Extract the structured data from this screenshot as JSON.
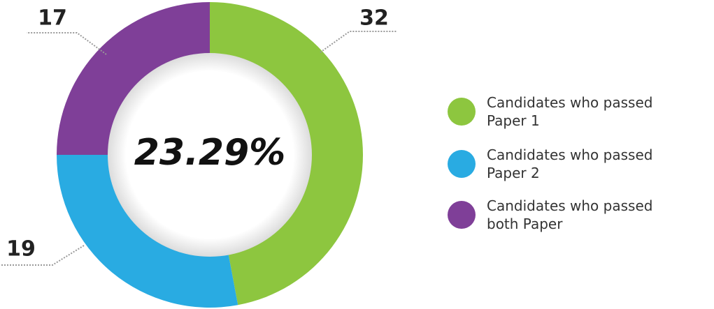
{
  "chart_data": {
    "type": "pie",
    "donut": true,
    "categories": [
      "Candidates who passed Paper 1",
      "Candidates who passed Paper 2",
      "Candidates who passed both Paper"
    ],
    "values": [
      32,
      19,
      17
    ],
    "colors": [
      "#8dc63f",
      "#29abe2",
      "#7f3f98"
    ],
    "center_label": "23.29%"
  }
}
